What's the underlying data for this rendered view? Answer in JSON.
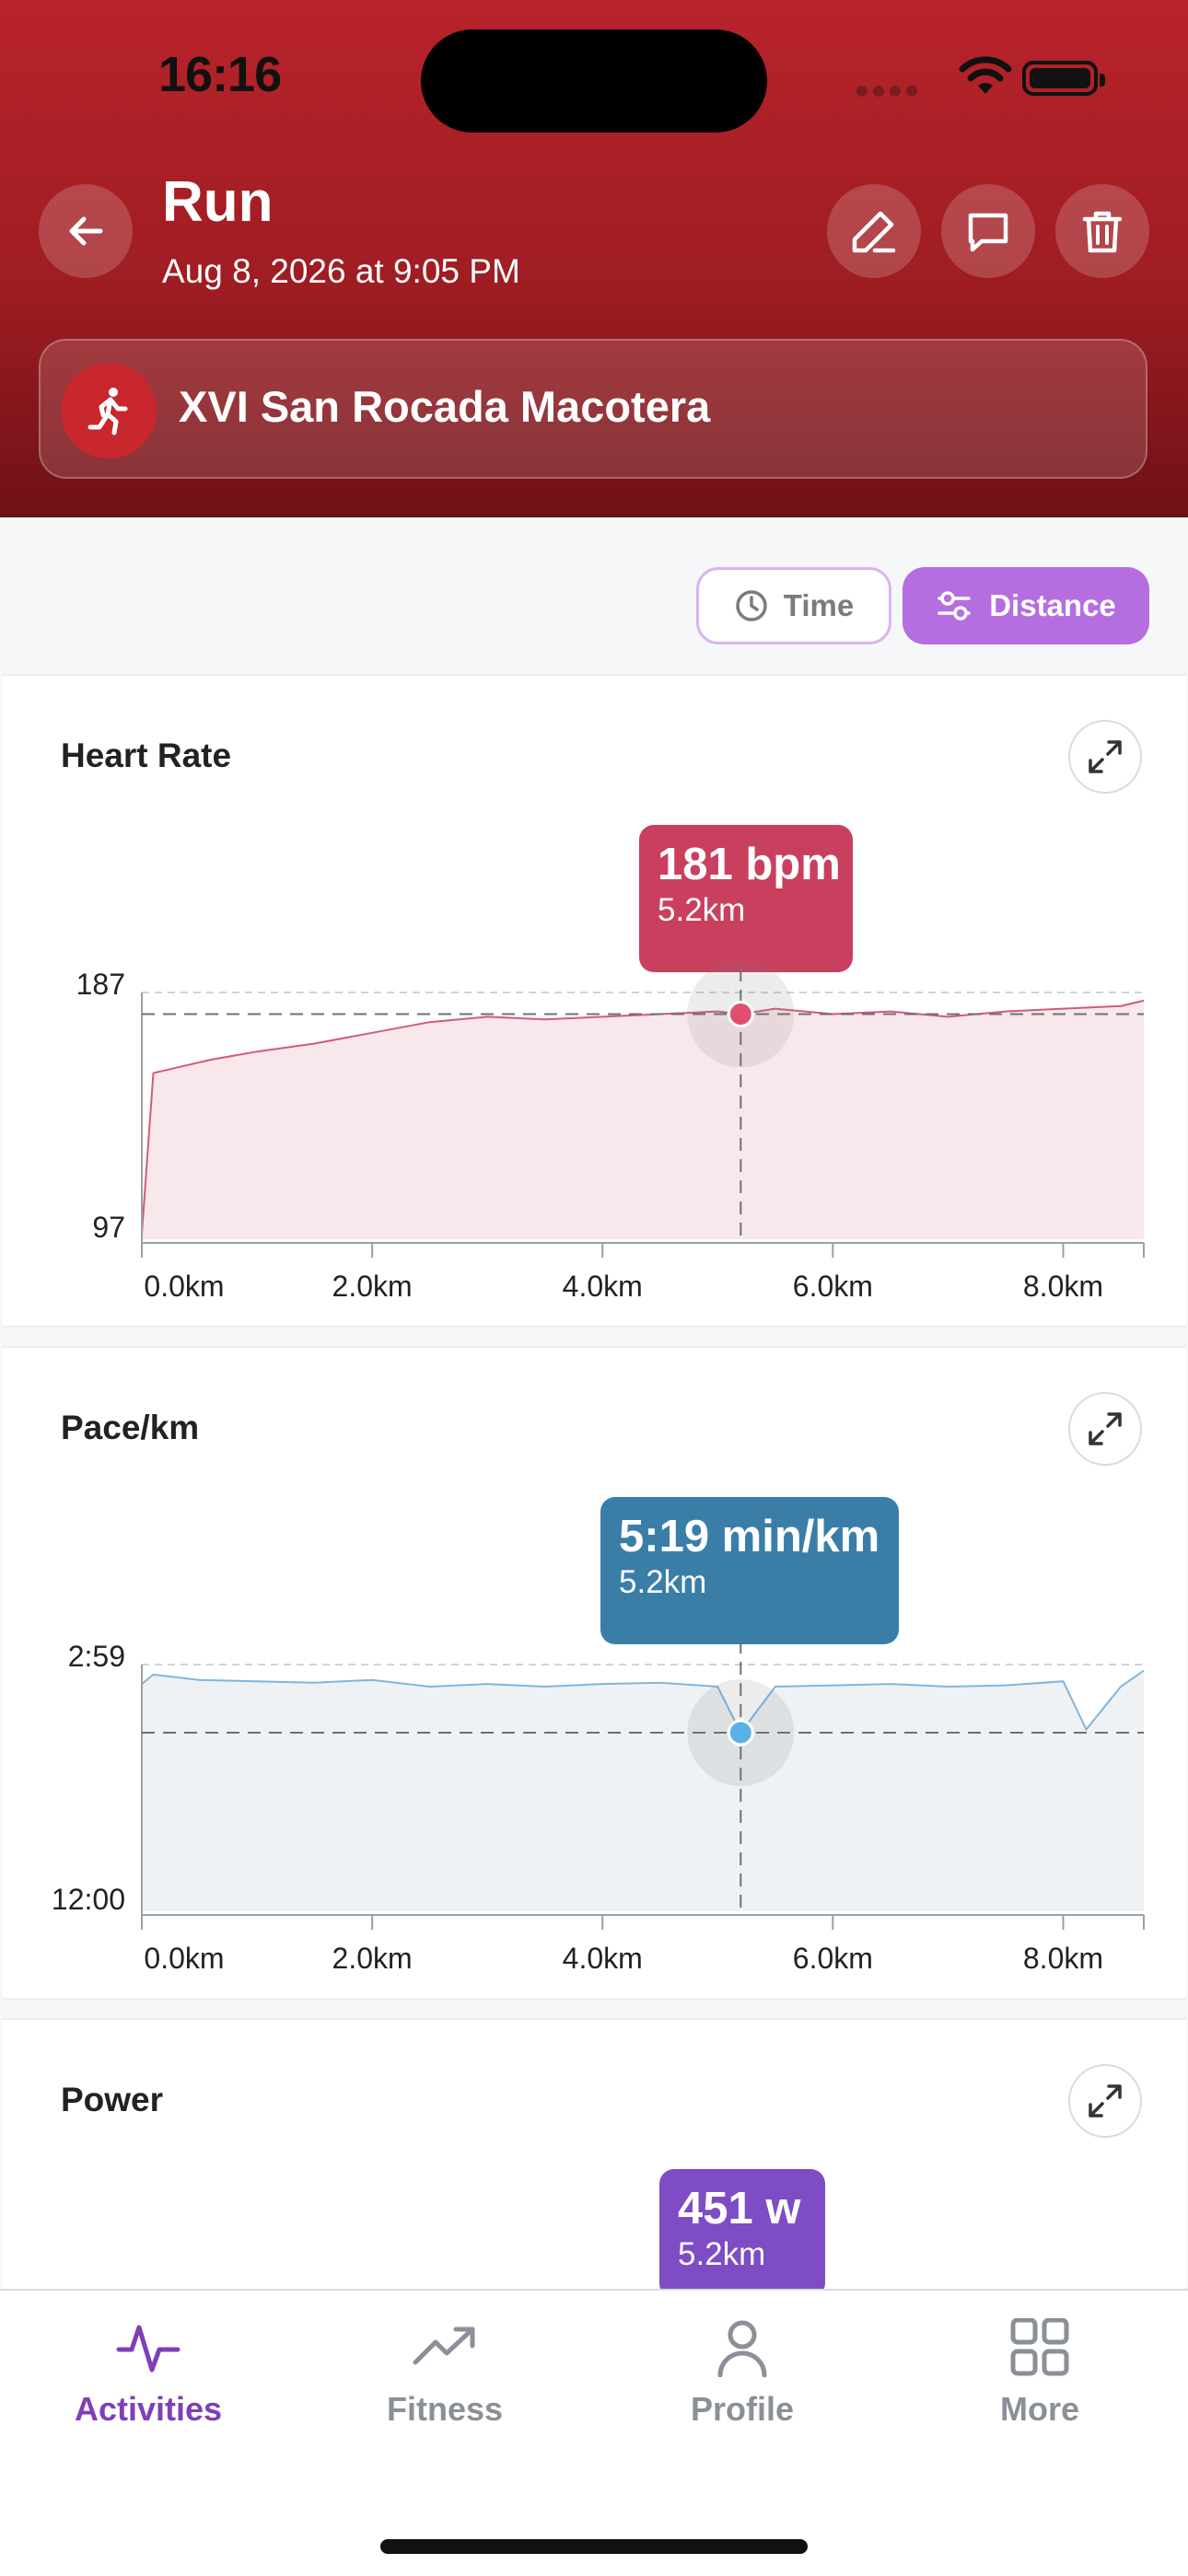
{
  "status_bar": {
    "time": "16:16"
  },
  "header": {
    "title": "Run",
    "subtitle": "Aug 8, 2026 at 9:05 PM",
    "event_name": "XVI San Rocada Macotera"
  },
  "toggle": {
    "time_label": "Time",
    "distance_label": "Distance",
    "selected": "Distance"
  },
  "charts": [
    {
      "title": "Heart Rate",
      "tooltip_value": "181 bpm",
      "tooltip_km": "5.2km",
      "y_top_label": "187",
      "y_bottom_label": "97",
      "x_ticks": [
        "0.0km",
        "2.0km",
        "4.0km",
        "6.0km",
        "8.0km"
      ],
      "color": "#c9405e"
    },
    {
      "title": "Pace/km",
      "tooltip_value": "5:19 min/km",
      "tooltip_km": "5.2km",
      "y_top_label": "2:59",
      "y_bottom_label": "12:00",
      "x_ticks": [
        "0.0km",
        "2.0km",
        "4.0km",
        "6.0km",
        "8.0km"
      ],
      "color": "#3a7ea8"
    },
    {
      "title": "Power",
      "tooltip_value": "451 w",
      "tooltip_km": "5.2km",
      "color": "#7e4cc4"
    }
  ],
  "chart_data": [
    {
      "type": "area",
      "title": "Heart Rate",
      "xlabel": "",
      "ylabel": "",
      "x_unit": "km",
      "ylim": [
        97,
        187
      ],
      "x": [
        0.0,
        0.1,
        0.3,
        0.6,
        1.0,
        1.5,
        2.0,
        2.5,
        3.0,
        3.5,
        4.0,
        4.5,
        5.0,
        5.2,
        5.5,
        6.0,
        6.5,
        7.0,
        7.5,
        8.0,
        8.5,
        8.7
      ],
      "values": [
        99,
        159,
        161,
        164,
        167,
        170,
        174,
        178,
        180,
        179,
        180,
        181,
        182,
        181,
        183,
        181,
        182,
        180,
        182,
        183,
        184,
        186
      ],
      "highlight": {
        "x": 5.2,
        "y": 181
      }
    },
    {
      "type": "area",
      "title": "Pace/km",
      "xlabel": "",
      "ylabel": "",
      "x_unit": "km",
      "y_unit": "min/km",
      "ylim_labels": [
        "2:59",
        "12:00"
      ],
      "ylim_min": [
        2.98,
        12.0
      ],
      "y_inverted": true,
      "x": [
        0.0,
        0.1,
        0.5,
        1.0,
        1.5,
        2.0,
        2.5,
        3.0,
        3.5,
        4.0,
        4.5,
        5.0,
        5.2,
        5.5,
        6.0,
        6.5,
        7.0,
        7.5,
        8.0,
        8.2,
        8.5,
        8.7
      ],
      "values": [
        3.5,
        3.15,
        3.35,
        3.4,
        3.45,
        3.35,
        3.6,
        3.5,
        3.6,
        3.5,
        3.45,
        3.6,
        5.32,
        3.6,
        3.55,
        3.5,
        3.6,
        3.55,
        3.4,
        5.2,
        3.6,
        3.0
      ],
      "highlight": {
        "x": 5.2,
        "y_label": "5:19"
      }
    }
  ],
  "tabs": [
    {
      "label": "Activities",
      "icon": "activity-icon",
      "active": true
    },
    {
      "label": "Fitness",
      "icon": "trending-up-icon",
      "active": false
    },
    {
      "label": "Profile",
      "icon": "user-icon",
      "active": false
    },
    {
      "label": "More",
      "icon": "grid-icon",
      "active": false
    }
  ]
}
